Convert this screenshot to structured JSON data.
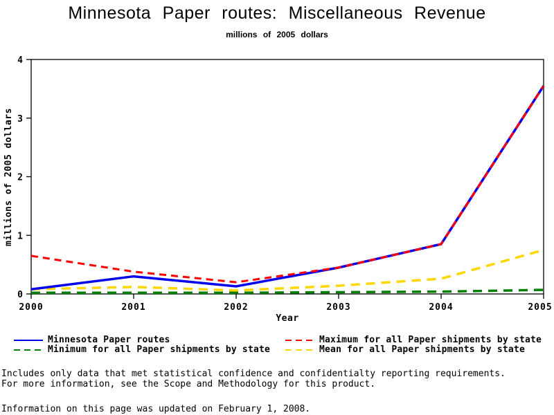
{
  "page": {
    "title": "Minnesota Paper routes: Miscellaneous Revenue",
    "subtitle": "millions of 2005 dollars"
  },
  "chart_data": {
    "type": "line",
    "title": "Minnesota Paper routes: Miscellaneous Revenue",
    "subtitle": "millions of 2005 dollars",
    "x": [
      2000,
      2001,
      2002,
      2003,
      2004,
      2005
    ],
    "xlabel": "Year",
    "ylabel": "millions of 2005 dollars",
    "ylim": [
      0,
      4
    ],
    "yticks": [
      0,
      1,
      2,
      3,
      4
    ],
    "grid": false,
    "legend_position": "bottom-two-columns",
    "series": [
      {
        "name": "Minnesota Paper routes",
        "color": "#0000ee",
        "dash": "",
        "legend_dash": "",
        "width": 3.5,
        "values": [
          0.08,
          0.3,
          0.13,
          0.45,
          0.85,
          3.55
        ]
      },
      {
        "name": "Minimum for all Paper shipments by state",
        "color": "#008000",
        "dash": "13,9",
        "legend_dash": "9,6",
        "width": 3.5,
        "values": [
          0.02,
          0.02,
          0.02,
          0.03,
          0.04,
          0.07
        ]
      },
      {
        "name": "Maximum for all Paper shipments by state",
        "color": "#ff0000",
        "dash": "10,7",
        "legend_dash": "9,6",
        "width": 3,
        "values": [
          0.65,
          0.38,
          0.2,
          0.45,
          0.85,
          3.55
        ]
      },
      {
        "name": "Mean for all Paper shipments by state",
        "color": "#ffd700",
        "dash": "13,9",
        "legend_dash": "9,6",
        "width": 3.5,
        "values": [
          0.08,
          0.12,
          0.06,
          0.14,
          0.26,
          0.75
        ]
      }
    ],
    "draw_order": [
      1,
      3,
      0,
      2
    ],
    "legend_columns": {
      "left": [
        0,
        1
      ],
      "right": [
        2,
        3
      ]
    }
  },
  "footnotes": {
    "line1": "Includes only data that met statistical confidence and confidentialty reporting requirements.",
    "line2": "For more information, see the Scope and Methodology for this product.",
    "updated": "Information on this page was updated on February 1, 2008."
  }
}
